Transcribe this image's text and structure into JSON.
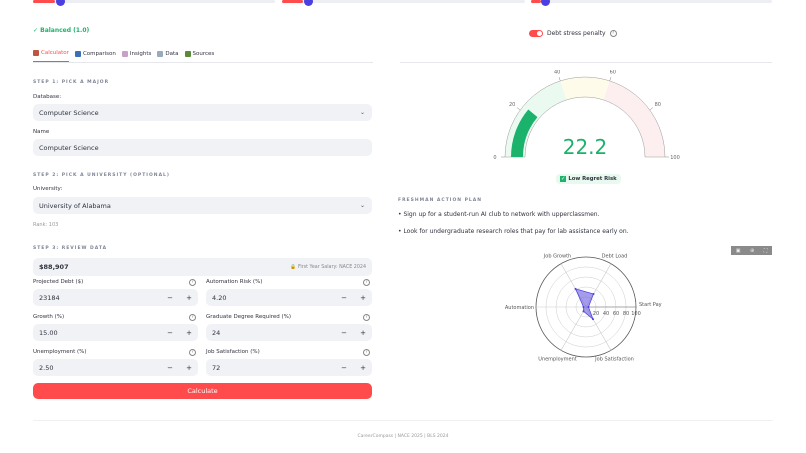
{
  "sliders": [
    {
      "fill": 0.11
    },
    {
      "fill": 0.11
    },
    {
      "fill": 0.06
    }
  ],
  "balance_status": "✓ Balanced (1.0)",
  "toggle": {
    "label": "Debt stress penalty",
    "on": true
  },
  "tabs": [
    {
      "label": "Calculator",
      "active": true
    },
    {
      "label": "Comparison"
    },
    {
      "label": "Insights"
    },
    {
      "label": "Data"
    },
    {
      "label": "Sources"
    }
  ],
  "step1": {
    "heading": "STEP 1: PICK A MAJOR",
    "database_label": "Database:",
    "database_value": "Computer Science",
    "name_label": "Name",
    "name_value": "Computer Science"
  },
  "step2": {
    "heading": "STEP 2: PICK A UNIVERSITY (OPTIONAL)",
    "university_label": "University:",
    "university_value": "University of Alabama",
    "rank": "Rank: 103"
  },
  "step3": {
    "heading": "STEP 3: REVIEW DATA",
    "salary": "$88,907",
    "salary_source": "First Year Salary: NACE 2024",
    "fields": [
      {
        "label": "Projected Debt ($)",
        "value": "23184"
      },
      {
        "label": "Automation Risk (%)",
        "value": "4.20"
      },
      {
        "label": "Growth (%)",
        "value": "15.00"
      },
      {
        "label": "Graduate Degree Required (%)",
        "value": "24"
      },
      {
        "label": "Unemployment (%)",
        "value": "2.50"
      },
      {
        "label": "Job Satisfaction (%)",
        "value": "72"
      }
    ]
  },
  "calculate_label": "Calculate",
  "gauge": {
    "value": "22.2",
    "value_num": 22.2,
    "min": 0,
    "max": 100,
    "ticks": [
      "0",
      "20",
      "40",
      "60",
      "80",
      "100"
    ],
    "risk_label": "Low Regret Risk",
    "colors": {
      "bar": "#1bb26b",
      "low": "#eafaf1",
      "mid": "#fffbea",
      "high": "#fdefef"
    }
  },
  "action_plan": {
    "heading": "FRESHMAN ACTION PLAN",
    "items": [
      "• Sign up for a student-run AI club to network with upperclassmen.",
      "• Look for undergraduate research roles that pay for lab assistance early on."
    ]
  },
  "chart_data": {
    "type": "radar",
    "axes": [
      "Start Pay",
      "Debt Load",
      "Job Growth",
      "Automation",
      "Unemployment",
      "Job Satisfaction"
    ],
    "values": [
      5,
      30,
      42,
      5,
      10,
      28
    ],
    "range": [
      0,
      100
    ],
    "tick_labels": [
      "20",
      "40",
      "60",
      "80",
      "100"
    ],
    "color": "#6a5ae0"
  },
  "footer": "CareerCompass | NACE 2025 | BLS 2024"
}
